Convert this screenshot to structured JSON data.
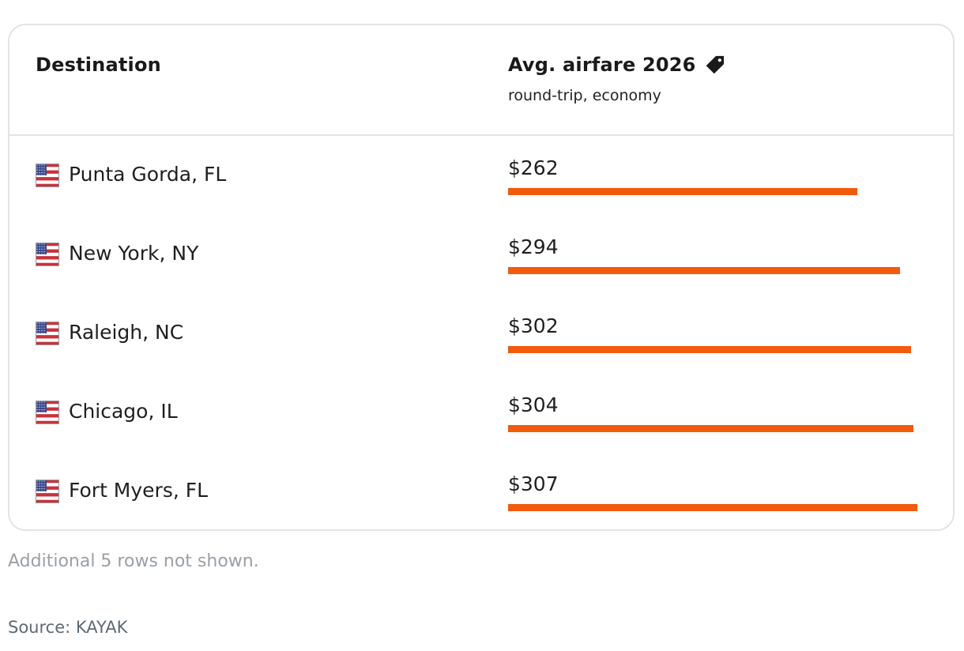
{
  "table": {
    "col_destination": "Destination",
    "col_airfare": "Avg. airfare 2026",
    "col_airfare_sub": "round-trip, economy",
    "tag_icon": "price-tag-icon",
    "flag_icon": "us-flag-icon"
  },
  "chart_data": {
    "type": "bar",
    "orientation": "horizontal",
    "categories": [
      "Punta Gorda, FL",
      "New York, NY",
      "Raleigh, NC",
      "Chicago, IL",
      "Fort Myers, FL"
    ],
    "values": [
      262,
      294,
      302,
      304,
      307
    ],
    "labels": [
      "$262",
      "$294",
      "$302",
      "$304",
      "$307"
    ],
    "bar_color": "#f25a0c",
    "xlim": [
      0,
      307
    ]
  },
  "footer": {
    "note": "Additional 5 rows not shown.",
    "source": "Source: KAYAK"
  }
}
